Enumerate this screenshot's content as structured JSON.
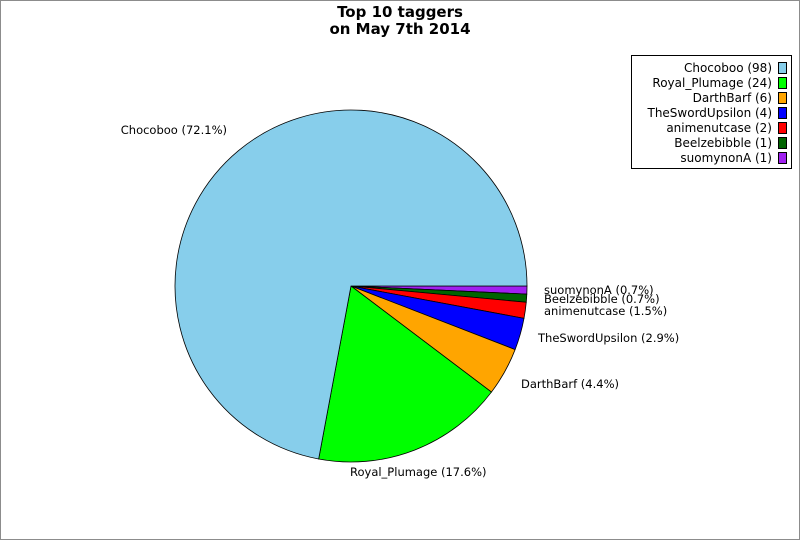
{
  "chart_data": {
    "type": "pie",
    "title": [
      "Top 10 taggers",
      "on May 7th 2014"
    ],
    "legend_position": "top-right",
    "slices": [
      {
        "name": "Chocoboo",
        "value": 98,
        "legend_label": "Chocoboo (98)",
        "slice_label": "Chocoboo (72.1%)",
        "color": "#87ceeb"
      },
      {
        "name": "Royal_Plumage",
        "value": 24,
        "legend_label": "Royal_Plumage (24)",
        "slice_label": "Royal_Plumage (17.6%)",
        "color": "#00ff00"
      },
      {
        "name": "DarthBarf",
        "value": 6,
        "legend_label": "DarthBarf (6)",
        "slice_label": "DarthBarf (4.4%)",
        "color": "#ffa500"
      },
      {
        "name": "TheSwordUpsilon",
        "value": 4,
        "legend_label": "TheSwordUpsilon (4)",
        "slice_label": "TheSwordUpsilon (2.9%)",
        "color": "#0000ff"
      },
      {
        "name": "animenutcase",
        "value": 2,
        "legend_label": "animenutcase (2)",
        "slice_label": "animenutcase (1.5%)",
        "color": "#ff0000"
      },
      {
        "name": "Beelzebibble",
        "value": 1,
        "legend_label": "Beelzebibble (1)",
        "slice_label": "Beelzebibble (0.7%)",
        "color": "#006400"
      },
      {
        "name": "suomynonA",
        "value": 1,
        "legend_label": "suomynonA (1)",
        "slice_label": "suomynonA (0.7%)",
        "color": "#a020f0"
      }
    ]
  }
}
